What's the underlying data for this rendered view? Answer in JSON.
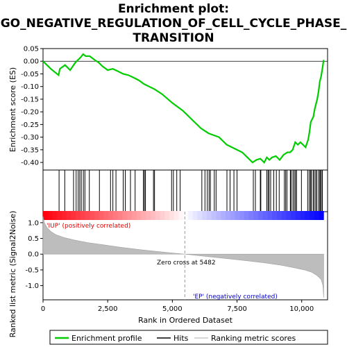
{
  "chart_data": {
    "type": "line",
    "title_lines": [
      "Enrichment plot:",
      "GO_NEGATIVE_REGULATION_OF_CELL_CYCLE_PHASE_",
      "TRANSITION"
    ],
    "es_panel": {
      "ylabel": "Enrichment score (ES)",
      "ylim": [
        -0.43,
        0.05
      ],
      "yticks": [
        0.05,
        0.0,
        -0.05,
        -0.1,
        -0.15,
        -0.2,
        -0.25,
        -0.3,
        -0.35,
        -0.4
      ],
      "ytick_labels": [
        "0.05",
        "0.00",
        "-0.05",
        "-0.10",
        "-0.15",
        "-0.20",
        "-0.25",
        "-0.30",
        "-0.35",
        "-0.40"
      ],
      "series_name": "Enrichment profile",
      "color": "#00cc00",
      "x": [
        0,
        300,
        600,
        650,
        850,
        1050,
        1150,
        1250,
        1350,
        1450,
        1550,
        1650,
        1800,
        2000,
        2150,
        2300,
        2500,
        2700,
        2900,
        3100,
        3300,
        3500,
        3700,
        3900,
        4100,
        4300,
        4600,
        5000,
        5400,
        5800,
        6100,
        6400,
        6800,
        7100,
        7400,
        7700,
        7900,
        8100,
        8250,
        8400,
        8550,
        8650,
        8750,
        8850,
        9000,
        9150,
        9300,
        9450,
        9550,
        9650,
        9750,
        9850,
        9950,
        10050,
        10150,
        10250,
        10300,
        10350,
        10450,
        10500,
        10550,
        10600,
        10650,
        10700,
        10750,
        10800,
        10850
      ],
      "es": [
        0.0,
        -0.03,
        -0.055,
        -0.03,
        -0.015,
        -0.035,
        -0.02,
        -0.005,
        0.005,
        0.015,
        0.028,
        0.02,
        0.02,
        0.005,
        -0.005,
        -0.02,
        -0.035,
        -0.03,
        -0.04,
        -0.05,
        -0.055,
        -0.065,
        -0.075,
        -0.09,
        -0.1,
        -0.11,
        -0.13,
        -0.165,
        -0.195,
        -0.235,
        -0.265,
        -0.285,
        -0.3,
        -0.33,
        -0.345,
        -0.36,
        -0.38,
        -0.4,
        -0.39,
        -0.385,
        -0.4,
        -0.38,
        -0.39,
        -0.38,
        -0.375,
        -0.39,
        -0.37,
        -0.36,
        -0.36,
        -0.35,
        -0.32,
        -0.33,
        -0.32,
        -0.33,
        -0.34,
        -0.31,
        -0.28,
        -0.24,
        -0.22,
        -0.19,
        -0.17,
        -0.15,
        -0.12,
        -0.08,
        -0.06,
        -0.03,
        0.005
      ]
    },
    "hits_x": [
      620,
      840,
      1180,
      1280,
      1360,
      1420,
      1480,
      1560,
      1620,
      1790,
      2180,
      2610,
      2700,
      2820,
      3100,
      3180,
      3380,
      3560,
      3880,
      3920,
      3960,
      4270,
      4310,
      4970,
      5040,
      5170,
      5300,
      6140,
      6260,
      6350,
      6420,
      6470,
      6620,
      6690,
      7110,
      7230,
      7380,
      7500,
      8130,
      8210,
      8400,
      8420,
      8650,
      8700,
      8740,
      8800,
      8920,
      9020,
      9130,
      9330,
      9380,
      9430,
      9560,
      9590,
      9660,
      9710,
      9760,
      9800,
      9990,
      10230,
      10290,
      10340,
      10370,
      10440,
      10480,
      10540,
      10580,
      10650,
      10700,
      10720,
      10760,
      10800
    ],
    "rank_panel": {
      "ylabel": "Ranked list metric (Signal2Noise)",
      "ylim": [
        -1.45,
        1.35
      ],
      "yticks": [
        1.0,
        0.5,
        0.0,
        -0.5,
        -1.0
      ],
      "ytick_labels": [
        "1.0",
        "0.5",
        "0.0",
        "-0.5",
        "-1.0"
      ],
      "metric_x": [
        0,
        50,
        150,
        300,
        500,
        800,
        1200,
        1700,
        2300,
        3000,
        3800,
        4600,
        5482,
        6300,
        7100,
        7900,
        8600,
        9200,
        9700,
        10100,
        10400,
        10600,
        10750,
        10820,
        10850
      ],
      "metric_y": [
        1.2,
        1.0,
        0.85,
        0.72,
        0.62,
        0.53,
        0.45,
        0.37,
        0.3,
        0.22,
        0.14,
        0.07,
        0.0,
        -0.07,
        -0.14,
        -0.21,
        -0.28,
        -0.35,
        -0.43,
        -0.5,
        -0.58,
        -0.68,
        -0.8,
        -1.0,
        -1.38
      ],
      "pos_label": "'IUP' (positively correlated)",
      "neg_label": "'EP' (negatively correlated)",
      "zero_cross_label": "Zero cross at 5482",
      "zero_cross": 5482
    },
    "xlabel": "Rank in Ordered Dataset",
    "xlim": [
      0,
      11000
    ],
    "xticks": [
      0,
      2500,
      5000,
      7500,
      10000
    ],
    "xtick_labels": [
      "0",
      "2,500",
      "5,000",
      "7,500",
      "10,000"
    ],
    "n_genes": 10850,
    "legend": [
      "Enrichment profile",
      "Hits",
      "Ranking metric scores"
    ]
  }
}
